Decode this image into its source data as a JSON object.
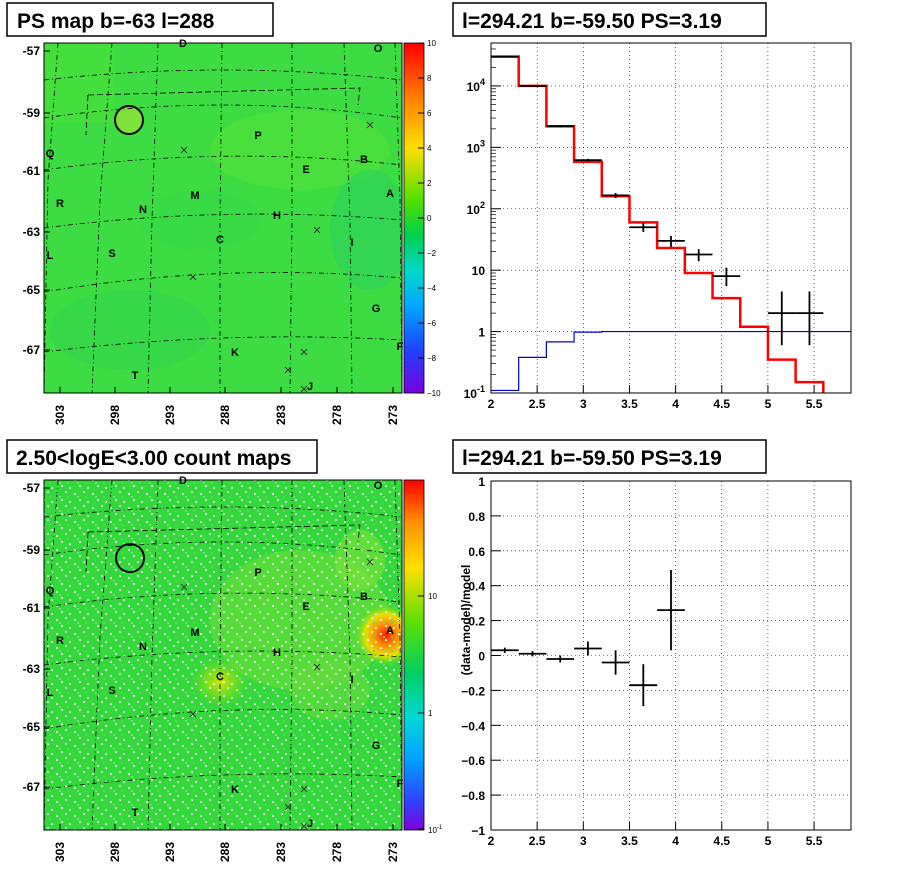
{
  "panels": {
    "tl_title": "PS map b=-63 l=288",
    "tr_title": "l=294.21 b=-59.50 PS=3.19",
    "bl_title": "2.50<logE<3.00 count maps",
    "br_title": "l=294.21 b=-59.50 PS=3.19"
  },
  "map": {
    "lat_ticks": [
      "-57",
      "-59",
      "-61",
      "-63",
      "-65",
      "-67"
    ],
    "lon_ticks": [
      "303",
      "298",
      "293",
      "288",
      "283",
      "278",
      "273"
    ],
    "sources": [
      "D",
      "O",
      "P",
      "Q",
      "B",
      "E",
      "A",
      "R",
      "N",
      "M",
      "H",
      "I",
      "C",
      "S",
      "L",
      "G",
      "K",
      "F",
      "T",
      "J"
    ],
    "colorbar_ps": [
      "10",
      "8",
      "6",
      "4",
      "2",
      "0",
      "−2",
      "−4",
      "−6",
      "−8",
      "−10"
    ],
    "colorbar_counts_major": [
      "10",
      "1"
    ],
    "colorbar_counts_min_base": "10",
    "colorbar_counts_min_exp": "-1",
    "colors": {
      "background": "#33dd3a",
      "hotspot": "#ff2a00",
      "circle": "#000000"
    }
  },
  "chart_data": [
    {
      "type": "step",
      "title": "l=294.21 b=-59.50 PS=3.19",
      "xlabel": "",
      "ylabel": "",
      "xlim": [
        2,
        5.9
      ],
      "ylim": [
        0.1,
        50000
      ],
      "yscale": "log",
      "grid": true,
      "x_ticks": [
        "2",
        "2.5",
        "3",
        "3.5",
        "4",
        "4.5",
        "5",
        "5.5"
      ],
      "y_ticks": [
        {
          "base": "10",
          "exp": "4"
        },
        {
          "base": "10",
          "exp": "3"
        },
        {
          "base": "10",
          "exp": "2"
        },
        {
          "base": "10",
          "exp": ""
        },
        {
          "base": "1",
          "exp": ""
        },
        {
          "base": "10",
          "exp": "-1"
        }
      ],
      "series": [
        {
          "color": "#ff0000",
          "edges": [
            2.0,
            2.3,
            2.6,
            2.9,
            3.2,
            3.5,
            3.8,
            4.1,
            4.4,
            4.7,
            5.0,
            5.3,
            5.6,
            5.9
          ],
          "values": [
            30000,
            10000,
            2200,
            580,
            160,
            60,
            23,
            9,
            3.5,
            1.2,
            0.35,
            0.15,
            0.07
          ]
        },
        {
          "color": "#0000cc",
          "edges": [
            2.0,
            2.3,
            2.6,
            2.9,
            3.2,
            3.5,
            3.8,
            4.1,
            4.4,
            4.7,
            5.0,
            5.3,
            5.6,
            5.9
          ],
          "values": [
            0.11,
            0.38,
            0.68,
            0.98,
            1.0,
            1.0,
            1.0,
            1.0,
            1.0,
            1.0,
            1.0,
            1.0,
            1.0
          ]
        },
        {
          "color": "#000000",
          "errorbars": true,
          "x": [
            2.15,
            2.45,
            2.75,
            3.05,
            3.35,
            3.65,
            3.95,
            4.25,
            4.55,
            5.15,
            5.45
          ],
          "xerr": 0.15,
          "y": [
            30000,
            10000,
            2200,
            620,
            165,
            50,
            30,
            18,
            8,
            2,
            2
          ],
          "ylo": [
            29000,
            9700,
            2100,
            590,
            150,
            42,
            24,
            14,
            5.5,
            0.6,
            0.6
          ],
          "yhi": [
            31000,
            10300,
            2300,
            650,
            180,
            58,
            36,
            22,
            11,
            4.5,
            4.5
          ]
        }
      ]
    },
    {
      "type": "scatter",
      "title": "l=294.21 b=-59.50 PS=3.19",
      "xlabel": "",
      "ylabel": "(data-model)/model",
      "xlim": [
        2,
        5.9
      ],
      "ylim": [
        -1,
        1
      ],
      "grid": true,
      "x_ticks": [
        "2",
        "2.5",
        "3",
        "3.5",
        "4",
        "4.5",
        "5",
        "5.5"
      ],
      "y_ticks": [
        "1",
        "0.8",
        "0.6",
        "0.4",
        "0.2",
        "0",
        "−0.2",
        "−0.4",
        "−0.6",
        "−0.8",
        "−1"
      ],
      "series": [
        {
          "color": "#000000",
          "errorbars": true,
          "x": [
            2.15,
            2.45,
            2.75,
            3.05,
            3.35,
            3.65,
            3.95
          ],
          "xerr": 0.15,
          "y": [
            0.03,
            0.01,
            -0.02,
            0.04,
            -0.04,
            -0.17,
            0.26
          ],
          "yerr": [
            0.015,
            0.015,
            0.02,
            0.04,
            0.07,
            0.12,
            0.23
          ]
        }
      ]
    }
  ]
}
